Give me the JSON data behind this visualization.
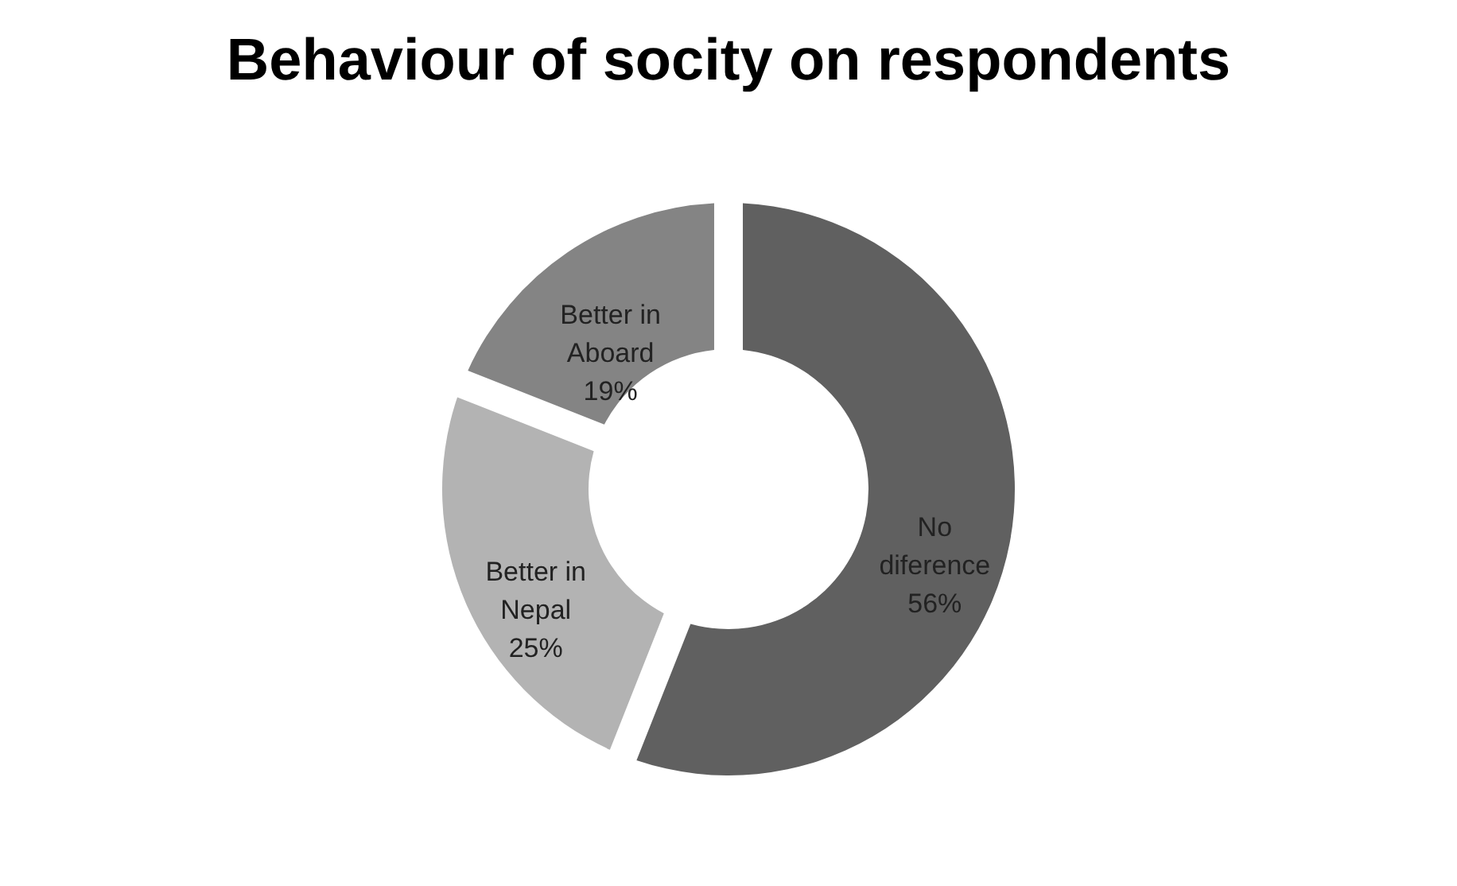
{
  "chart_data": {
    "type": "donut",
    "title": "Behaviour of socity on respondents",
    "categories": [
      "No diference",
      "Better in Nepal",
      "Better in Aboard"
    ],
    "values": [
      56,
      25,
      19
    ],
    "colors": [
      "#606060",
      "#b3b3b3",
      "#848484"
    ],
    "value_labels": [
      "56%",
      "25%",
      "19%"
    ]
  }
}
